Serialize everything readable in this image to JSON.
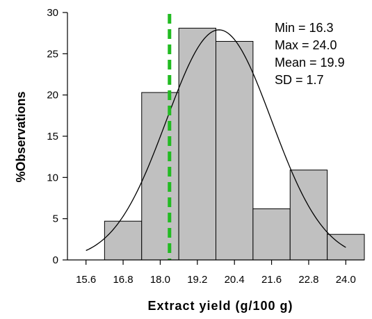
{
  "chart_data": {
    "type": "bar",
    "subtype": "histogram",
    "x_ticks": [
      "15.6",
      "16.8",
      "18.0",
      "19.2",
      "20.4",
      "21.6",
      "22.8",
      "24.0"
    ],
    "x_tick_values": [
      15.6,
      16.8,
      18.0,
      19.2,
      20.4,
      21.6,
      22.8,
      24.0
    ],
    "xlim": [
      15.0,
      24.6
    ],
    "bins": [
      {
        "from": 16.2,
        "to": 17.4,
        "value": 4.7
      },
      {
        "from": 17.4,
        "to": 18.6,
        "value": 20.3
      },
      {
        "from": 18.6,
        "to": 19.8,
        "value": 28.1
      },
      {
        "from": 19.8,
        "to": 21.0,
        "value": 26.5
      },
      {
        "from": 21.0,
        "to": 22.2,
        "value": 6.2
      },
      {
        "from": 22.2,
        "to": 23.4,
        "value": 10.9
      },
      {
        "from": 23.4,
        "to": 24.6,
        "value": 3.1
      }
    ],
    "y_ticks": [
      "0",
      "5",
      "10",
      "15",
      "20",
      "25",
      "30"
    ],
    "y_tick_values": [
      0,
      5,
      10,
      15,
      20,
      25,
      30
    ],
    "ylim": [
      0,
      30
    ],
    "xlabel": "Extract yield (g/100 g)",
    "ylabel": "%Observations",
    "normal_curve": {
      "mean": 19.9,
      "sd": 1.7,
      "peak": 27.9,
      "x_range": [
        15.6,
        24.0
      ]
    },
    "reference_line": {
      "x": 18.3,
      "style": "dashed",
      "color": "#22bb22"
    },
    "annotations": [
      "Min = 16.3",
      "Max = 24.0",
      "Mean = 19.9",
      "SD = 1.7"
    ],
    "bar_color": "#c0c0c0",
    "grid": false
  }
}
